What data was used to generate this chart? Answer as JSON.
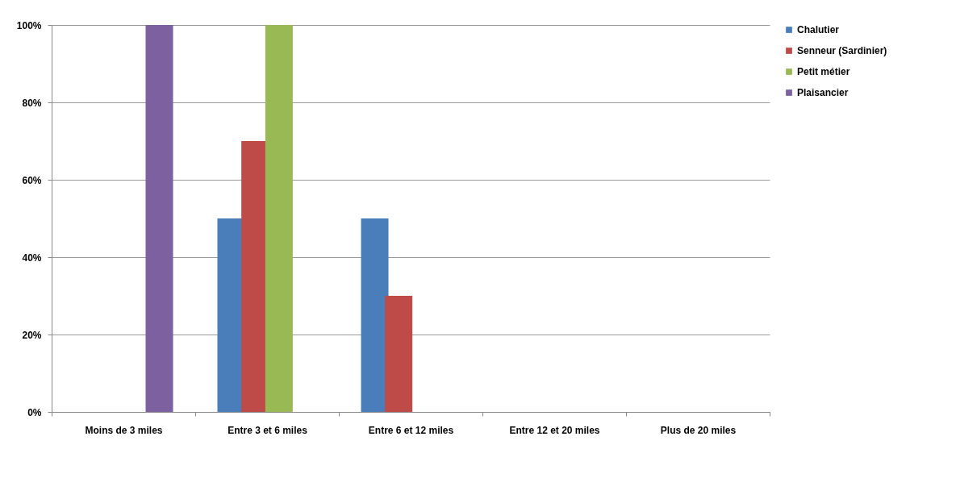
{
  "chart_data": {
    "type": "bar",
    "categories": [
      "Moins de 3 miles",
      "Entre 3 et 6 miles",
      "Entre 6 et 12 miles",
      "Entre 12 et 20 miles",
      "Plus de 20 miles"
    ],
    "series": [
      {
        "name": "Chalutier",
        "color": "#4a7ebb",
        "values": [
          0,
          50,
          50,
          0,
          0
        ]
      },
      {
        "name": "Senneur (Sardinier)",
        "color": "#be4b48",
        "values": [
          0,
          70,
          30,
          0,
          0
        ]
      },
      {
        "name": "Petit métier",
        "color": "#98b954",
        "values": [
          0,
          100,
          0,
          0,
          0
        ]
      },
      {
        "name": "Plaisancier",
        "color": "#7d60a0",
        "values": [
          100,
          0,
          0,
          0,
          0
        ]
      }
    ],
    "ylim": [
      0,
      100
    ],
    "yticks": [
      {
        "value": 0,
        "label": "0%"
      },
      {
        "value": 20,
        "label": "20%"
      },
      {
        "value": 40,
        "label": "40%"
      },
      {
        "value": 60,
        "label": "60%"
      },
      {
        "value": 80,
        "label": "80%"
      },
      {
        "value": 100,
        "label": "100%"
      }
    ],
    "grid": "y",
    "legend": "right"
  }
}
